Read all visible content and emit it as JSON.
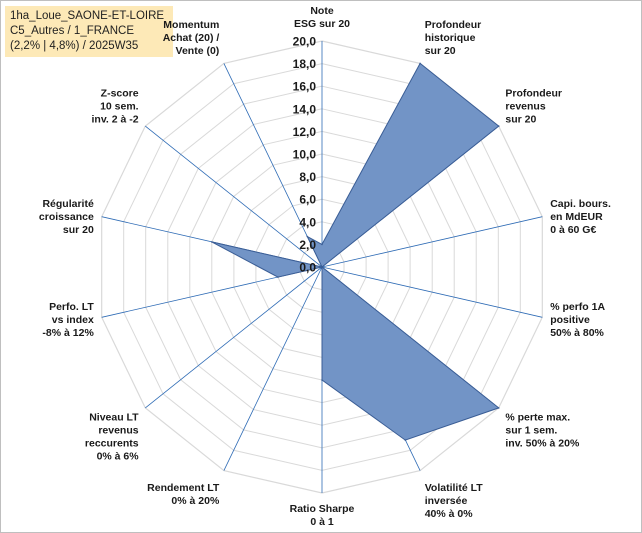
{
  "title_lines": [
    "1ha_Loue_SAONE-ET-LOIRE",
    "C5_Autres / 1_FRANCE",
    "(2,2% | 4,8%) / 2025W35"
  ],
  "chart_data": {
    "type": "radar",
    "rmin": 0,
    "rmax": 20,
    "tick_step": 2,
    "tick_labels": [
      "0,0",
      "2,0",
      "4,0",
      "6,0",
      "8,0",
      "10,0",
      "12,0",
      "14,0",
      "16,0",
      "18,0",
      "20,0"
    ],
    "grid": true,
    "axes": [
      {
        "label": [
          "Note",
          "ESG sur 20"
        ],
        "value": 2
      },
      {
        "label": [
          "Profondeur",
          "historique",
          "sur 20"
        ],
        "value": 20
      },
      {
        "label": [
          "Profondeur",
          "revenus",
          "sur 20"
        ],
        "value": 20
      },
      {
        "label": [
          "Capi. bours.",
          "en MdEUR",
          "0 à 60 G€"
        ],
        "value": 0
      },
      {
        "label": [
          "% perfo 1A",
          "positive",
          "50% à 80%"
        ],
        "value": 0
      },
      {
        "label": [
          "% perte max.",
          "sur 1 sem.",
          "inv. 50% à 20%"
        ],
        "value": 20
      },
      {
        "label": [
          "Volatilité LT",
          "inversée",
          "40% à 0%"
        ],
        "value": 17
      },
      {
        "label": [
          "Ratio Sharpe",
          "0 à 1"
        ],
        "value": 10
      },
      {
        "label": [
          "Rendement LT",
          "0% à 20%"
        ],
        "value": 0
      },
      {
        "label": [
          "Niveau LT",
          "revenus",
          "reccurents",
          "0% à 6%"
        ],
        "value": 0
      },
      {
        "label": [
          "Perfo. LT",
          "vs index",
          "-8% à 12%"
        ],
        "value": 4
      },
      {
        "label": [
          "Régularité",
          "croissance",
          "sur 20"
        ],
        "value": 10
      },
      {
        "label": [
          "Z-score",
          "10 sem.",
          "inv. 2 à -2"
        ],
        "value": 0
      },
      {
        "label": [
          "Momentum",
          "Achat (20) /",
          "Vente (0)"
        ],
        "value": 3
      }
    ],
    "colors": {
      "fill": "#7294c6",
      "stroke": "#3a5d95",
      "grid": "#d9d9d9",
      "spoke": "#2e6bb5"
    }
  }
}
